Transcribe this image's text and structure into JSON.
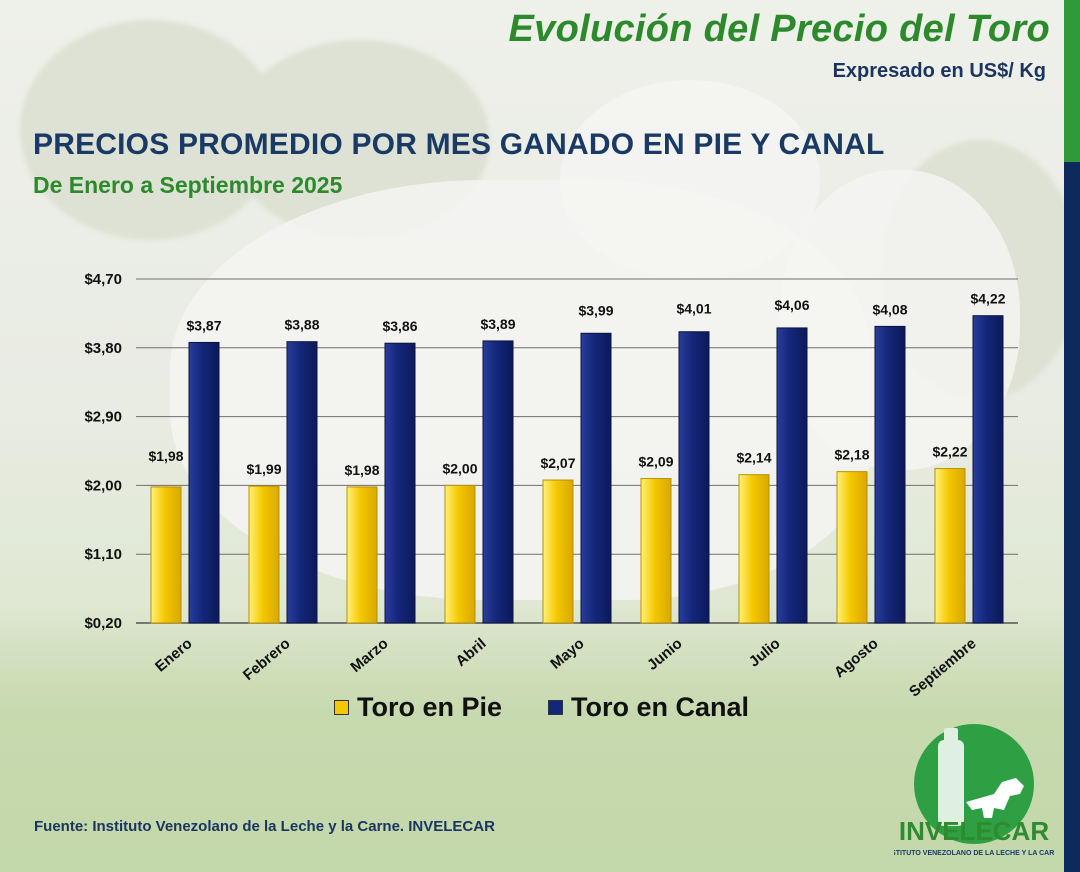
{
  "header": {
    "title": "Evolución del Precio del Toro",
    "subtitle": "Expresado en US$/ Kg"
  },
  "heading": {
    "title": "PRECIOS PROMEDIO POR MES GANADO EN PIE Y CANAL",
    "subtitle": "De Enero a Septiembre 2025"
  },
  "footer": {
    "source": "Fuente: Instituto Venezolano de la Leche y la Carne. INVELECAR"
  },
  "logo": {
    "name": "INVELECAR",
    "tagline": "INSTITUTO VENEZOLANO DE LA LECHE Y LA CARNE",
    "icon": "milk-bottle-and-bull-icon"
  },
  "colors": {
    "title_green": "#2c8a2c",
    "navy": "#1a3a66",
    "series_pie": "#f5c800",
    "series_canal": "#14267a"
  },
  "chart_data": {
    "type": "bar",
    "categories": [
      "Enero",
      "Febrero",
      "Marzo",
      "Abril",
      "Mayo",
      "Junio",
      "Julio",
      "Agosto",
      "Septiembre"
    ],
    "series": [
      {
        "name": "Toro en Pie",
        "color": "#f5c800",
        "values": [
          1.98,
          1.99,
          1.98,
          2.0,
          2.07,
          2.09,
          2.14,
          2.18,
          2.22
        ],
        "labels": [
          "$1,98",
          "$1,99",
          "$1,98",
          "$2,00",
          "$2,07",
          "$2,09",
          "$2,14",
          "$2,18",
          "$2,22"
        ]
      },
      {
        "name": "Toro en Canal",
        "color": "#14267a",
        "values": [
          3.87,
          3.88,
          3.86,
          3.89,
          3.99,
          4.01,
          4.06,
          4.08,
          4.22
        ],
        "labels": [
          "$3,87",
          "$3,88",
          "$3,86",
          "$3,89",
          "$3,99",
          "$4,01",
          "$4,06",
          "$4,08",
          "$4,22"
        ]
      }
    ],
    "yticks": [
      0.2,
      1.1,
      2.0,
      2.9,
      3.8,
      4.7
    ],
    "ytick_labels": [
      "$0,20",
      "$1,10",
      "$2,00",
      "$2,90",
      "$3,80",
      "$4,70"
    ],
    "ylim": [
      0.2,
      4.7
    ],
    "grid": true,
    "legend": "bottom"
  }
}
